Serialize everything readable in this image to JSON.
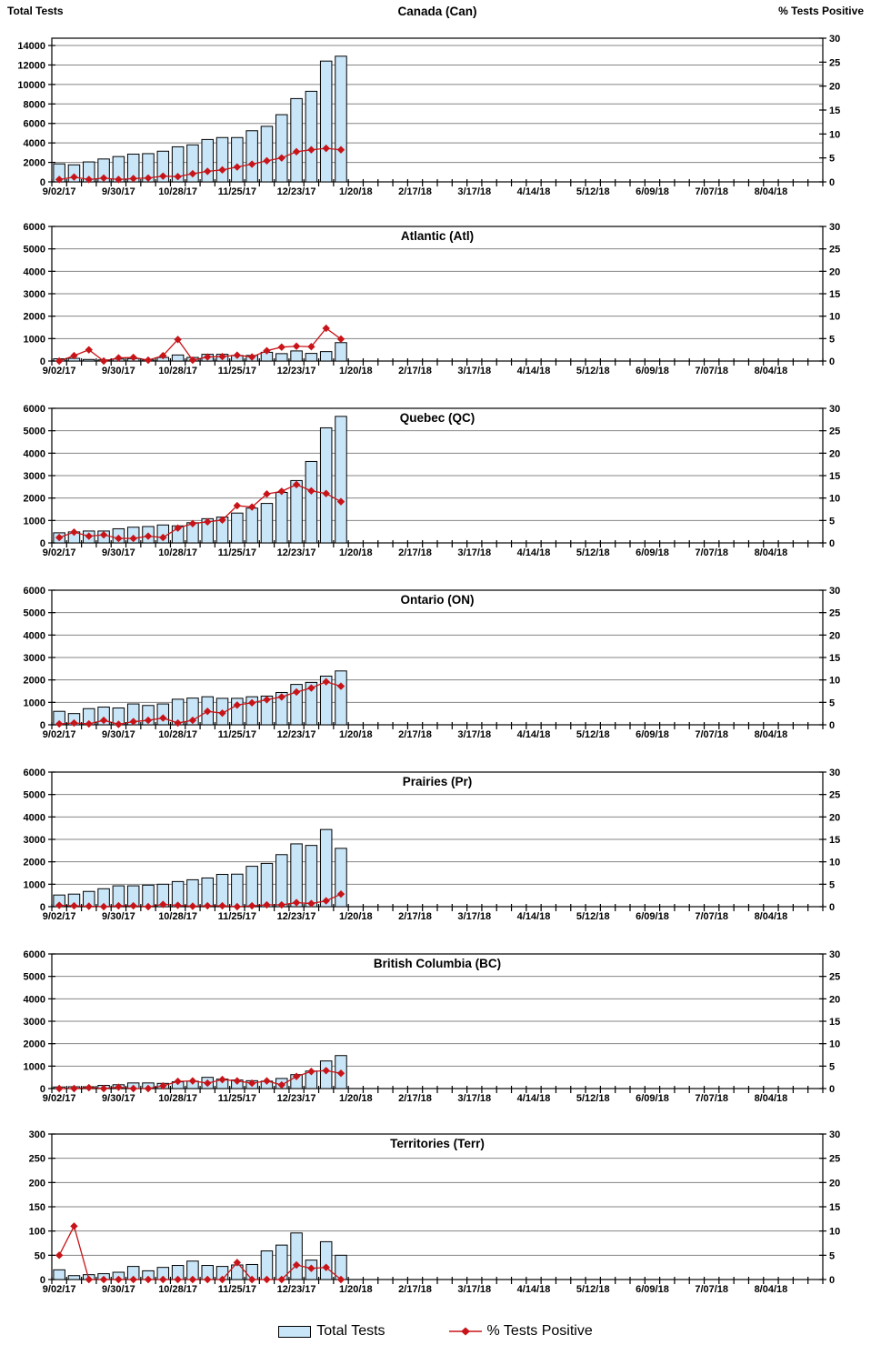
{
  "header": {
    "left_axis_title": "Total Tests",
    "right_axis_title": "% Tests Positive"
  },
  "legend": {
    "total_tests": "Total Tests",
    "pct_positive": "% Tests Positive"
  },
  "colors": {
    "bar_fill": "#c9e6f8",
    "bar_border": "#000000",
    "line": "#c81418",
    "grid": "#858585",
    "axis": "#000000",
    "text": "#000000"
  },
  "x_axis": {
    "weeks_total": 52,
    "label_every_weeks": 4,
    "tick_labels": [
      "9/02/17",
      "9/30/17",
      "10/28/17",
      "11/25/17",
      "12/23/17",
      "1/20/18",
      "2/17/18",
      "3/17/18",
      "4/14/18",
      "5/12/18",
      "6/09/18",
      "7/07/18",
      "8/04/18"
    ]
  },
  "right_axis": {
    "label": "% Tests Positive",
    "min": 0,
    "max": 30,
    "step": 5
  },
  "week_dates": [
    "9/02/17",
    "9/09/17",
    "9/16/17",
    "9/23/17",
    "9/30/17",
    "10/07/17",
    "10/14/17",
    "10/21/17",
    "10/28/17",
    "11/04/17",
    "11/11/17",
    "11/18/17",
    "11/25/17",
    "12/02/17",
    "12/09/17",
    "12/16/17",
    "12/23/17",
    "12/30/17",
    "1/06/18",
    "1/13/18"
  ],
  "chart_data": [
    {
      "type": "bar",
      "title": "Canada (Can)",
      "region_code": "canada",
      "left_axis": {
        "min": 0,
        "max": 14000,
        "step": 2000,
        "top": 14750
      },
      "series": [
        {
          "name": "Total Tests",
          "type": "bar",
          "values": [
            1850,
            1750,
            2050,
            2350,
            2600,
            2850,
            2900,
            3150,
            3600,
            3800,
            4350,
            4550,
            4550,
            5250,
            5700,
            6900,
            8550,
            9300,
            12400,
            12900
          ]
        },
        {
          "name": "% Tests Positive",
          "type": "line",
          "values": [
            0.5,
            1.0,
            0.5,
            0.8,
            0.5,
            0.7,
            0.8,
            1.2,
            1.1,
            1.7,
            2.2,
            2.5,
            3.1,
            3.7,
            4.4,
            5.0,
            6.3,
            6.7,
            7.0,
            6.7
          ]
        }
      ]
    },
    {
      "type": "bar",
      "title": "Atlantic (Atl)",
      "region_code": "atlantic",
      "left_axis": {
        "min": 0,
        "max": 6000,
        "step": 1000,
        "top": 6000
      },
      "series": [
        {
          "name": "Total Tests",
          "type": "bar",
          "values": [
            100,
            120,
            70,
            50,
            90,
            110,
            50,
            160,
            270,
            160,
            300,
            300,
            250,
            250,
            390,
            330,
            450,
            340,
            420,
            820
          ]
        },
        {
          "name": "% Tests Positive",
          "type": "line",
          "values": [
            0,
            1.2,
            2.5,
            0,
            0.7,
            0.8,
            0.2,
            1.2,
            4.8,
            0.2,
            0.9,
            1.0,
            1.3,
            0.9,
            2.3,
            3.1,
            3.3,
            3.2,
            7.3,
            4.9
          ]
        }
      ]
    },
    {
      "type": "bar",
      "title": "Quebec (QC)",
      "region_code": "quebec",
      "left_axis": {
        "min": 0,
        "max": 6000,
        "step": 1000,
        "top": 6000
      },
      "series": [
        {
          "name": "Total Tests",
          "type": "bar",
          "values": [
            450,
            490,
            530,
            530,
            630,
            700,
            730,
            800,
            760,
            900,
            1080,
            1150,
            1330,
            1550,
            1760,
            2250,
            2780,
            3630,
            5130,
            5640
          ]
        },
        {
          "name": "% Tests Positive",
          "type": "line",
          "values": [
            1.2,
            2.4,
            1.5,
            1.8,
            1.0,
            1.0,
            1.5,
            1.2,
            3.3,
            4.3,
            4.7,
            5.1,
            8.3,
            8.0,
            10.9,
            11.5,
            13.0,
            11.6,
            11.0,
            9.2
          ]
        }
      ]
    },
    {
      "type": "bar",
      "title": "Ontario (ON)",
      "region_code": "ontario",
      "left_axis": {
        "min": 0,
        "max": 6000,
        "step": 1000,
        "top": 6000
      },
      "series": [
        {
          "name": "Total Tests",
          "type": "bar",
          "values": [
            600,
            500,
            720,
            790,
            750,
            930,
            860,
            930,
            1140,
            1190,
            1250,
            1180,
            1180,
            1250,
            1280,
            1440,
            1800,
            1890,
            2170,
            2400
          ]
        },
        {
          "name": "% Tests Positive",
          "type": "line",
          "values": [
            0.2,
            0.4,
            0.2,
            1.0,
            0.1,
            0.7,
            1.0,
            1.5,
            0.4,
            1.0,
            3.0,
            2.6,
            4.4,
            4.9,
            5.6,
            6.2,
            7.3,
            8.2,
            9.6,
            8.6
          ]
        }
      ]
    },
    {
      "type": "bar",
      "title": "Prairies (Pr)",
      "region_code": "prairies",
      "left_axis": {
        "min": 0,
        "max": 6000,
        "step": 1000,
        "top": 6000
      },
      "series": [
        {
          "name": "Total Tests",
          "type": "bar",
          "values": [
            520,
            560,
            680,
            800,
            930,
            930,
            960,
            1000,
            1120,
            1200,
            1280,
            1440,
            1450,
            1800,
            1930,
            2320,
            2800,
            2730,
            3440,
            2600
          ]
        },
        {
          "name": "% Tests Positive",
          "type": "line",
          "values": [
            0.3,
            0.2,
            0.1,
            0,
            0.2,
            0.2,
            0,
            0.5,
            0.3,
            0.1,
            0.2,
            0.2,
            0,
            0.2,
            0.4,
            0.4,
            0.9,
            0.7,
            1.3,
            2.8
          ]
        }
      ]
    },
    {
      "type": "bar",
      "title": "British Columbia (BC)",
      "region_code": "british-columbia",
      "left_axis": {
        "min": 0,
        "max": 6000,
        "step": 1000,
        "top": 6000
      },
      "series": [
        {
          "name": "Total Tests",
          "type": "bar",
          "values": [
            70,
            80,
            80,
            140,
            170,
            250,
            250,
            230,
            300,
            330,
            500,
            420,
            380,
            350,
            330,
            450,
            620,
            780,
            1230,
            1470
          ]
        },
        {
          "name": "% Tests Positive",
          "type": "line",
          "values": [
            0,
            0,
            0.2,
            0,
            0.3,
            0,
            0,
            0.6,
            1.6,
            1.7,
            1.2,
            2.0,
            1.7,
            1.2,
            1.7,
            0.8,
            2.7,
            3.8,
            4.0,
            3.4
          ]
        }
      ]
    },
    {
      "type": "bar",
      "title": "Territories (Terr)",
      "region_code": "territories",
      "left_axis": {
        "min": 0,
        "max": 300,
        "step": 50,
        "top": 300
      },
      "series": [
        {
          "name": "Total Tests",
          "type": "bar",
          "values": [
            20,
            8,
            10,
            12,
            15,
            27,
            18,
            25,
            29,
            38,
            29,
            27,
            30,
            31,
            59,
            71,
            96,
            40,
            78,
            50
          ]
        },
        {
          "name": "% Tests Positive",
          "type": "line",
          "values": [
            5,
            11,
            0,
            0,
            0,
            0,
            0,
            0,
            0,
            0,
            0,
            0,
            3.5,
            0,
            0,
            0,
            3.0,
            2.3,
            2.5,
            0
          ]
        }
      ]
    }
  ]
}
